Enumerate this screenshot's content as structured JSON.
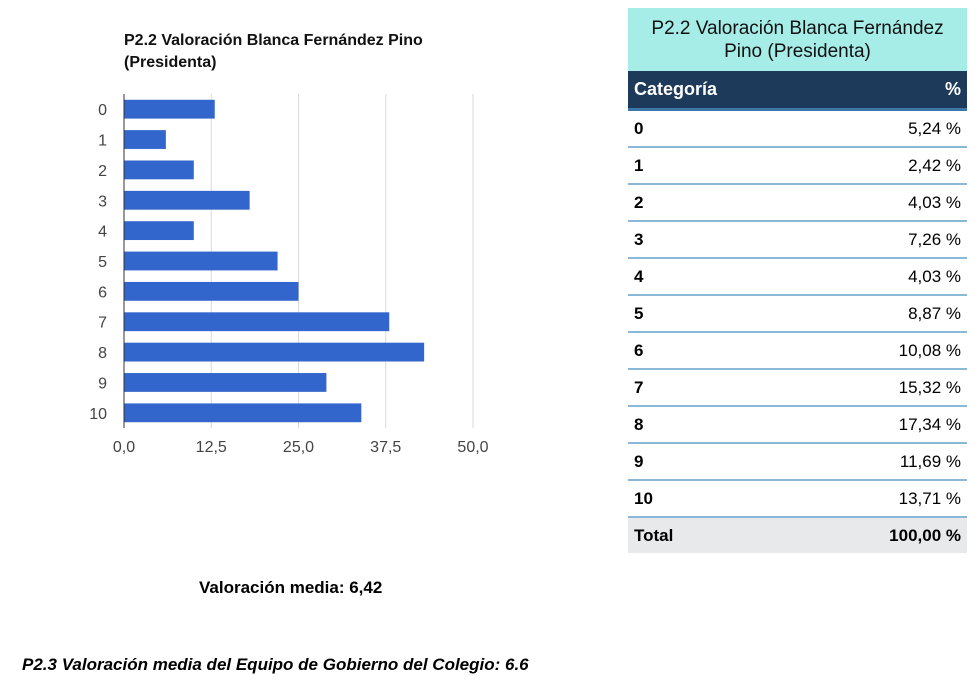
{
  "chart_data": {
    "type": "bar",
    "orientation": "horizontal",
    "title": "P2.2 Valoración Blanca Fernández Pino (Presidenta)",
    "categories": [
      "0",
      "1",
      "2",
      "3",
      "4",
      "5",
      "6",
      "7",
      "8",
      "9",
      "10"
    ],
    "values": [
      13,
      6,
      10,
      18,
      10,
      22,
      25,
      38,
      43,
      29,
      34
    ],
    "xlim": [
      0,
      50
    ],
    "ticks": [
      "0,0",
      "12,5",
      "25,0",
      "37,5",
      "50,0"
    ],
    "tick_values": [
      0,
      12.5,
      25,
      37.5,
      50
    ],
    "bar_color": "#3366cc",
    "grid": true,
    "legend": "none"
  },
  "summary": {
    "mean_label": "Valoración media: 6,42"
  },
  "table": {
    "title": "P2.2 Valoración Blanca Fernández Pino (Presidenta)",
    "headers": {
      "category": "Categoría",
      "percent": "%"
    },
    "rows": [
      {
        "category": "0",
        "percent": "5,24 %"
      },
      {
        "category": "1",
        "percent": "2,42 %"
      },
      {
        "category": "2",
        "percent": "4,03 %"
      },
      {
        "category": "3",
        "percent": "7,26 %"
      },
      {
        "category": "4",
        "percent": "4,03 %"
      },
      {
        "category": "5",
        "percent": "8,87 %"
      },
      {
        "category": "6",
        "percent": "10,08 %"
      },
      {
        "category": "7",
        "percent": "15,32 %"
      },
      {
        "category": "8",
        "percent": "17,34 %"
      },
      {
        "category": "9",
        "percent": "11,69 %"
      },
      {
        "category": "10",
        "percent": "13,71 %"
      }
    ],
    "total": {
      "category": "Total",
      "percent": "100,00 %"
    }
  },
  "footnote": "P2.3 Valoración media del Equipo de Gobierno del Colegio: 6.6",
  "colors": {
    "table_title_bg": "#a6ede8",
    "table_header_bg": "#1e3a5a",
    "total_row_bg": "#e7e9ea"
  }
}
